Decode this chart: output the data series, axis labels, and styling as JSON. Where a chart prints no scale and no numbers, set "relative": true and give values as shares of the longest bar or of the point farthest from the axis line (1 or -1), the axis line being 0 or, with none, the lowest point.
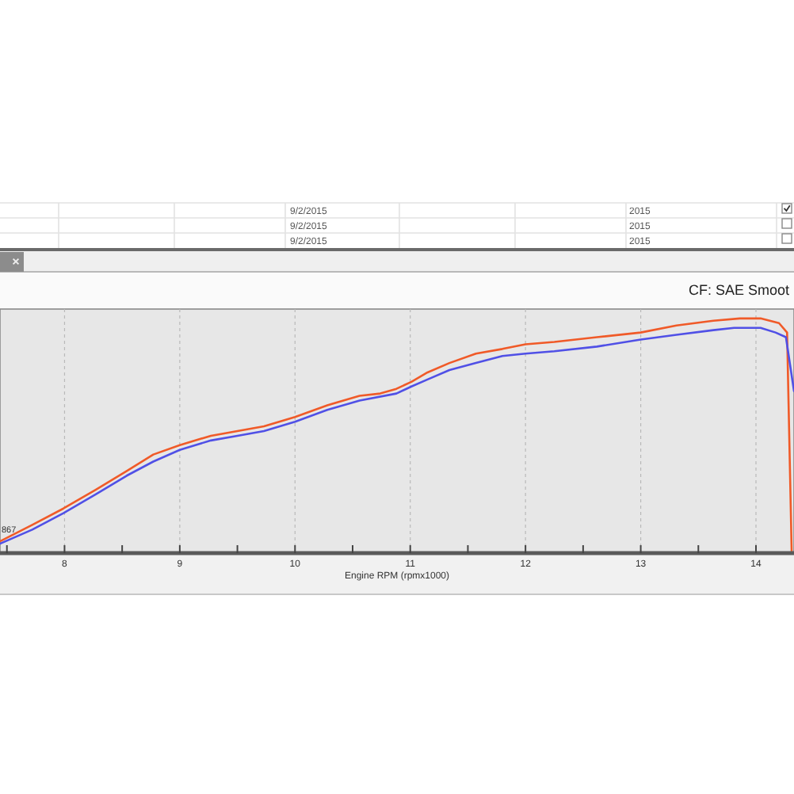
{
  "chart_data": {
    "type": "line",
    "relative": true,
    "xlabel": "Engine RPM (rpmx1000)",
    "xlim": [
      7.44,
      14.33
    ],
    "xticks": [
      {
        "value": 7.5,
        "label": null
      },
      8,
      {
        "value": 8.5,
        "label": null
      },
      9,
      {
        "value": 9.5,
        "label": null
      },
      10,
      {
        "value": 10.5,
        "label": null
      },
      11,
      {
        "value": 11.5,
        "label": null
      },
      12,
      {
        "value": 12.5,
        "label": null
      },
      13,
      {
        "value": 13.5,
        "label": null
      },
      14
    ],
    "grid": "x",
    "series": [
      {
        "color": "#f05a28",
        "x": [
          7.44,
          7.72,
          7.99,
          8.27,
          8.54,
          8.77,
          9.0,
          9.27,
          9.5,
          9.73,
          10.0,
          10.28,
          10.56,
          10.74,
          10.88,
          11.01,
          11.15,
          11.34,
          11.57,
          11.8,
          12.0,
          12.25,
          12.62,
          13.0,
          13.31,
          13.63,
          13.86,
          14.04,
          14.2,
          14.27,
          14.31
        ],
        "values": [
          0.05,
          0.12,
          0.19,
          0.27,
          0.35,
          0.42,
          0.46,
          0.5,
          0.52,
          0.54,
          0.58,
          0.63,
          0.67,
          0.68,
          0.7,
          0.73,
          0.77,
          0.81,
          0.85,
          0.87,
          0.89,
          0.9,
          0.92,
          0.94,
          0.97,
          0.99,
          1.0,
          1.0,
          0.98,
          0.94,
          0
        ]
      },
      {
        "color": "#5050e6",
        "x": [
          7.44,
          7.72,
          7.99,
          8.27,
          8.54,
          8.77,
          9.0,
          9.27,
          9.5,
          9.73,
          10.0,
          10.28,
          10.56,
          10.88,
          11.01,
          11.15,
          11.34,
          11.57,
          11.8,
          12.0,
          12.25,
          12.62,
          13.0,
          13.31,
          13.63,
          13.81,
          14.04,
          14.17,
          14.26,
          14.33
        ],
        "values": [
          0.04,
          0.1,
          0.17,
          0.25,
          0.33,
          0.39,
          0.44,
          0.48,
          0.5,
          0.52,
          0.56,
          0.61,
          0.65,
          0.68,
          0.71,
          0.74,
          0.78,
          0.81,
          0.84,
          0.85,
          0.86,
          0.88,
          0.91,
          0.93,
          0.95,
          0.96,
          0.96,
          0.94,
          0.92,
          0.69
        ]
      }
    ],
    "annotations": [
      "CF: SAE Smoot",
      "867",
      "9/2/2015",
      "2015",
      "9/2/2015",
      "2015",
      "9/2/2015",
      "2015"
    ]
  }
}
